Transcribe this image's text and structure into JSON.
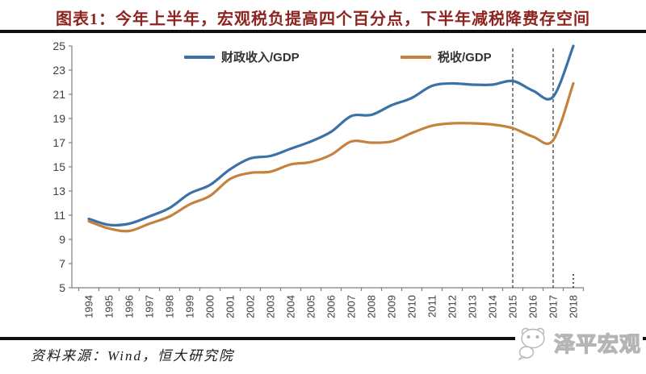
{
  "header": {
    "title": "图表1：今年上半年，宏观税负提高四个百分点，下半年减税降费存空间"
  },
  "footer": {
    "source": "资料来源：Wind，恒大研究院",
    "watermark_text": "泽平宏观"
  },
  "colors": {
    "title": "#8e2420",
    "rule": "#101010",
    "axis": "#808080",
    "tick_label": "#3f3f3f",
    "dashed_line": "#4a4a4a",
    "watermark_outline": "#b5b5b5"
  },
  "chart_data": {
    "type": "line",
    "title": "",
    "xlabel": "",
    "ylabel": "",
    "x": [
      1994,
      1995,
      1996,
      1997,
      1998,
      1999,
      2000,
      2001,
      2002,
      2003,
      2004,
      2005,
      2006,
      2007,
      2008,
      2009,
      2010,
      2011,
      2012,
      2013,
      2014,
      2015,
      2016,
      2017,
      2018
    ],
    "series": [
      {
        "name": "财政收入/GDP",
        "color": "#3a72a8",
        "values": [
          10.7,
          10.2,
          10.3,
          10.9,
          11.6,
          12.8,
          13.5,
          14.8,
          15.7,
          15.9,
          16.5,
          17.1,
          17.9,
          19.2,
          19.3,
          20.1,
          20.7,
          21.7,
          21.9,
          21.8,
          21.8,
          22.1,
          21.3,
          20.8,
          25.0
        ]
      },
      {
        "name": "税收/GDP",
        "color": "#c5823f",
        "values": [
          10.5,
          9.9,
          9.7,
          10.3,
          10.9,
          11.9,
          12.6,
          14.0,
          14.5,
          14.6,
          15.2,
          15.4,
          16.0,
          17.1,
          17.0,
          17.1,
          17.8,
          18.4,
          18.6,
          18.6,
          18.5,
          18.2,
          17.5,
          17.2,
          21.9
        ]
      }
    ],
    "ylim": [
      5,
      25
    ],
    "y_tick_step": 2,
    "y_ticks": [
      5,
      7,
      9,
      11,
      13,
      15,
      17,
      19,
      21,
      23,
      25
    ],
    "x_tick_rotation": -90,
    "dashed_vlines_x": [
      2015,
      2017
    ],
    "dotted_marker_x": 2018,
    "legend_position": "top-inside",
    "grid": false
  }
}
